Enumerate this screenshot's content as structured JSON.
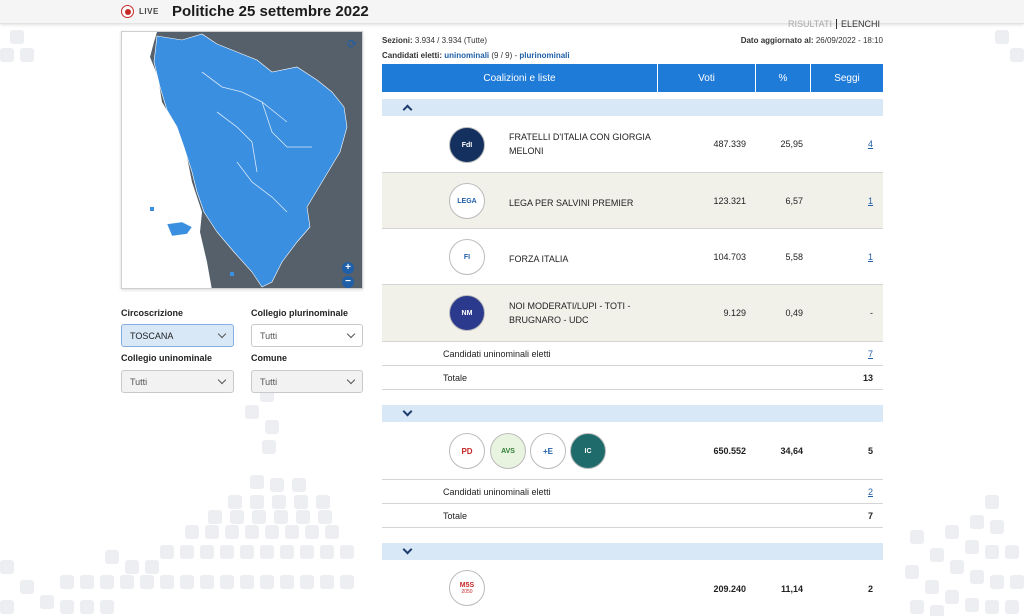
{
  "header": {
    "live_label": "LIVE",
    "title": "Politiche 25 settembre 2022",
    "tab_risultati": "RISULTATI",
    "tab_elenchi": "ELENCHI"
  },
  "filters": {
    "circoscrizione_label": "Circoscrizione",
    "circoscrizione_value": "TOSCANA",
    "collegio_pluri_label": "Collegio plurinominale",
    "collegio_pluri_value": "Tutti",
    "collegio_uni_label": "Collegio uninominale",
    "collegio_uni_value": "Tutti",
    "comune_label": "Comune",
    "comune_value": "Tutti"
  },
  "info": {
    "sezioni_label": "Sezioni:",
    "sezioni_value": "3.934 / 3.934 (Tutte)",
    "aggiornato_label": "Dato aggiornato al:",
    "aggiornato_value": "26/09/2022 - 18:10",
    "candidati_label": "Candidati eletti:",
    "uninominali": "uninominali",
    "uninominali_count": "(9 / 9) -",
    "plurinominali": "plurinominali"
  },
  "table": {
    "headers": [
      "Coalizioni e liste",
      "Voti",
      "%",
      "Seggi"
    ],
    "groups": [
      {
        "rows": [
          {
            "name": "FRATELLI D'ITALIA CON GIORGIA MELONI",
            "voti": "487.339",
            "pct": "25,95",
            "seggi": "4",
            "logo": "FdI"
          },
          {
            "name": "LEGA PER SALVINI PREMIER",
            "voti": "123.321",
            "pct": "6,57",
            "seggi": "1",
            "logo": "LEGA"
          },
          {
            "name": "FORZA ITALIA",
            "voti": "104.703",
            "pct": "5,58",
            "seggi": "1",
            "logo": "FI"
          },
          {
            "name": "NOI MODERATI/LUPI - TOTI - BRUGNARO - UDC",
            "voti": "9.129",
            "pct": "0,49",
            "seggi": "-",
            "logo": "NM"
          }
        ],
        "uni_label": "Candidati uninominali eletti",
        "uni_value": "7",
        "totale_label": "Totale",
        "totale_value": "13"
      },
      {
        "row": {
          "voti": "650.552",
          "pct": "34,64",
          "seggi": "5",
          "logos": [
            "PD",
            "AVS",
            "+E",
            "IC"
          ]
        },
        "uni_label": "Candidati uninominali eletti",
        "uni_value": "2",
        "totale_label": "Totale",
        "totale_value": "7"
      },
      {
        "row": {
          "voti": "209.240",
          "pct": "11,14",
          "seggi": "2",
          "logo": "M5S",
          "logo_year": "2050"
        }
      }
    ]
  },
  "colors": {
    "accent": "#1f7bd8",
    "map_region": "#3b8fe0",
    "map_sea": "#55606b"
  }
}
